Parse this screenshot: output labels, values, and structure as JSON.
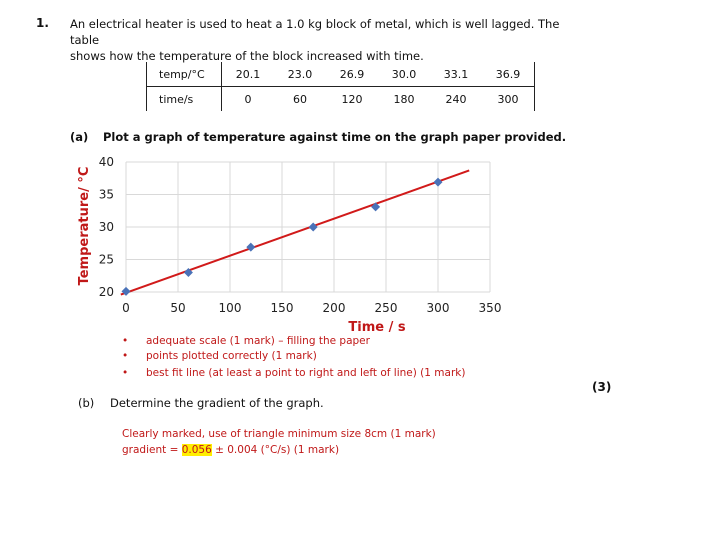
{
  "question": {
    "number": "1.",
    "intro_line1": "An electrical heater is used to heat a 1.0 kg block of metal, which is well lagged. The table",
    "intro_line2": "shows how the temperature of the block increased with time."
  },
  "table": {
    "rows": [
      {
        "label": "temp/°C",
        "values": [
          "20.1",
          "23.0",
          "26.9",
          "30.0",
          "33.1",
          "36.9"
        ]
      },
      {
        "label": "time/s",
        "values": [
          "0",
          "60",
          "120",
          "180",
          "240",
          "300"
        ]
      }
    ]
  },
  "part_a": {
    "label": "(a)",
    "text": "Plot a graph of temperature against time on the graph paper provided."
  },
  "chart_data": {
    "type": "scatter",
    "xlabel": "Time / s",
    "ylabel": "Temperature/ °C",
    "xlim": [
      0,
      350
    ],
    "ylim": [
      20,
      40
    ],
    "xticks": [
      "0",
      "50",
      "100",
      "150",
      "200",
      "250",
      "300",
      "350"
    ],
    "yticks": [
      "20",
      "25",
      "30",
      "35",
      "40"
    ],
    "grid": true,
    "x": [
      0,
      60,
      120,
      180,
      240,
      300
    ],
    "y": [
      20.1,
      23.0,
      26.9,
      30.0,
      33.1,
      36.9
    ],
    "best_fit": {
      "x": [
        -5,
        330
      ],
      "y": [
        19.6,
        38.7
      ]
    },
    "colors": {
      "points": "#4a72b8",
      "line": "#d11a1a",
      "axis_label": "#c01818",
      "grid": "#d9d9d9"
    }
  },
  "mark_scheme_a": [
    "adequate scale  (1 mark) – filling the paper",
    "points plotted correctly  (1 mark)",
    "best fit line (at least a point to right and left of line) (1 mark)"
  ],
  "marks_total": "(3)",
  "part_b": {
    "label": "(b)",
    "text": "Determine the gradient of the graph."
  },
  "answer_b": {
    "line1": "Clearly marked, use of triangle minimum size 8cm  (1 mark)",
    "line2_prefix": "gradient = ",
    "line2_value": "0.056",
    "line2_suffix": " ± 0.004 (°C/s)  (1 mark)"
  }
}
